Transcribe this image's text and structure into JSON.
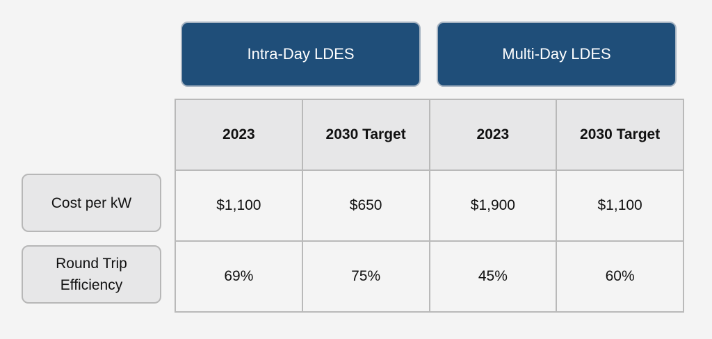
{
  "groups": [
    {
      "label": "Intra-Day LDES"
    },
    {
      "label": "Multi-Day LDES"
    }
  ],
  "columns": [
    "2023",
    "2030 Target",
    "2023",
    "2030 Target"
  ],
  "rows": [
    {
      "label_lines": [
        "Cost per kW"
      ],
      "values": [
        "$1,100",
        "$650",
        "$1,900",
        "$1,100"
      ]
    },
    {
      "label_lines": [
        "Round Trip",
        "Efficiency"
      ],
      "values": [
        "69%",
        "75%",
        "45%",
        "60%"
      ]
    }
  ],
  "colors": {
    "header_fill": "#1f4e79",
    "header_text": "#ffffff",
    "label_fill": "#e7e7e8",
    "background": "#f4f4f4",
    "grid_line": "#b9b9b9"
  }
}
